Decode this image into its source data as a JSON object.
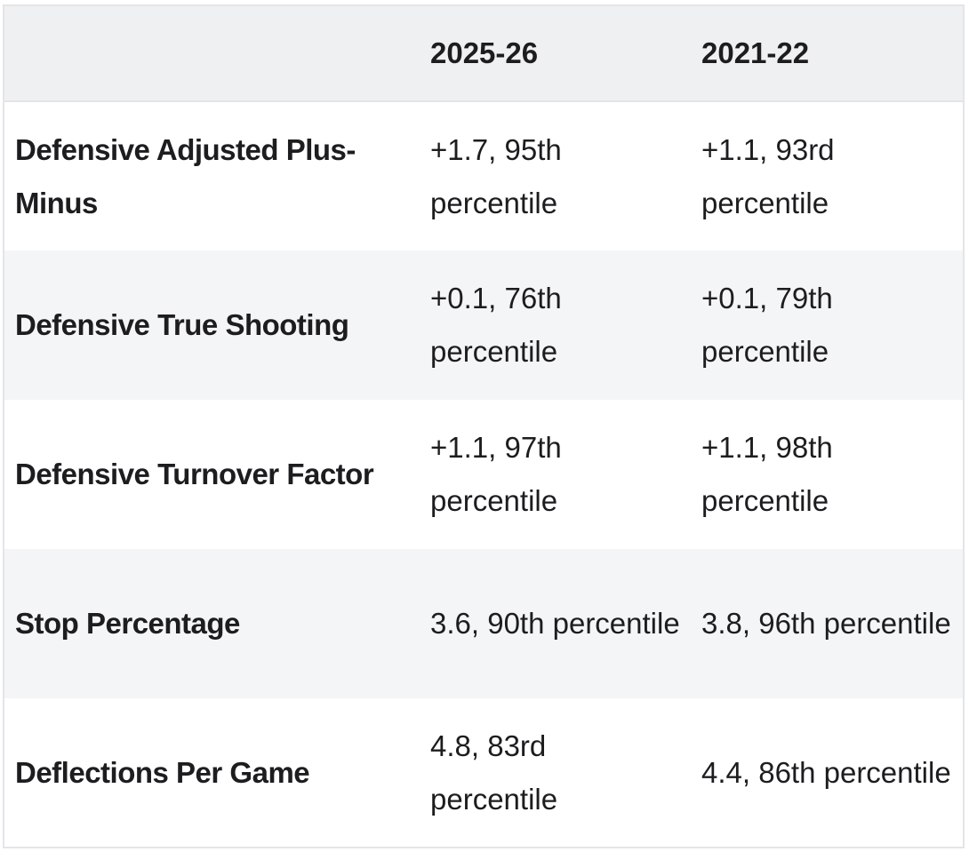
{
  "table": {
    "columns": [
      "2025-26",
      "2021-22"
    ],
    "rows": [
      {
        "label": "Defensive Adjusted Plus-Minus",
        "cells": [
          "+1.7, 95th percentile",
          "+1.1, 93rd percentile"
        ]
      },
      {
        "label": "Defensive True Shooting",
        "cells": [
          "+0.1, 76th percentile",
          "+0.1, 79th percentile"
        ]
      },
      {
        "label": "Defensive Turnover Factor",
        "cells": [
          "+1.1, 97th percentile",
          "+1.1, 98th percentile"
        ]
      },
      {
        "label": "Stop Percentage",
        "cells": [
          "3.6, 90th percentile",
          "3.8, 96th percentile"
        ]
      },
      {
        "label": "Deflections Per Game",
        "cells": [
          "4.8, 83rd percentile",
          "4.4, 86th percentile"
        ]
      }
    ]
  }
}
